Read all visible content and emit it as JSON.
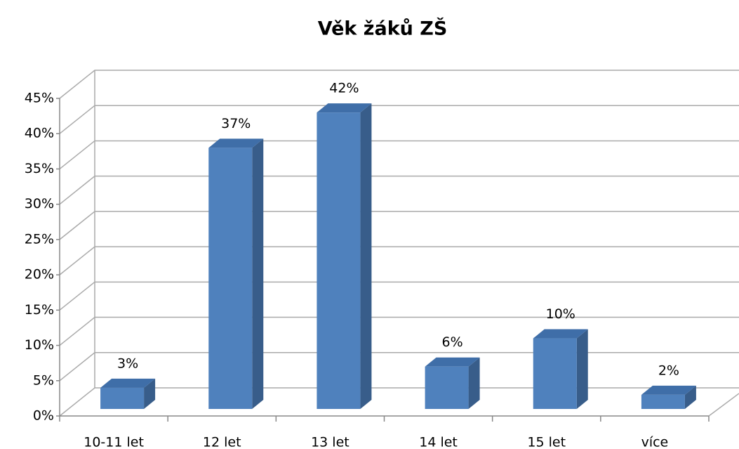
{
  "chart_data": {
    "type": "bar3d",
    "title": "Věk žáků ZŠ",
    "categories": [
      "10-11 let",
      "12 let",
      "13 let",
      "14 let",
      "15 let",
      "více"
    ],
    "values": [
      3,
      37,
      42,
      6,
      10,
      2
    ],
    "value_labels": [
      "3%",
      "37%",
      "42%",
      "6%",
      "10%",
      "2%"
    ],
    "color": "#4f81bd",
    "ylim": [
      0,
      45
    ],
    "yticks": [
      {
        "value": 0,
        "label": "0%"
      },
      {
        "value": 5,
        "label": "5%"
      },
      {
        "value": 10,
        "label": "10%"
      },
      {
        "value": 15,
        "label": "15%"
      },
      {
        "value": 20,
        "label": "20%"
      },
      {
        "value": 25,
        "label": "25%"
      },
      {
        "value": 30,
        "label": "30%"
      },
      {
        "value": 35,
        "label": "35%"
      },
      {
        "value": 40,
        "label": "40%"
      },
      {
        "value": 45,
        "label": "45%"
      }
    ],
    "grid": true
  }
}
